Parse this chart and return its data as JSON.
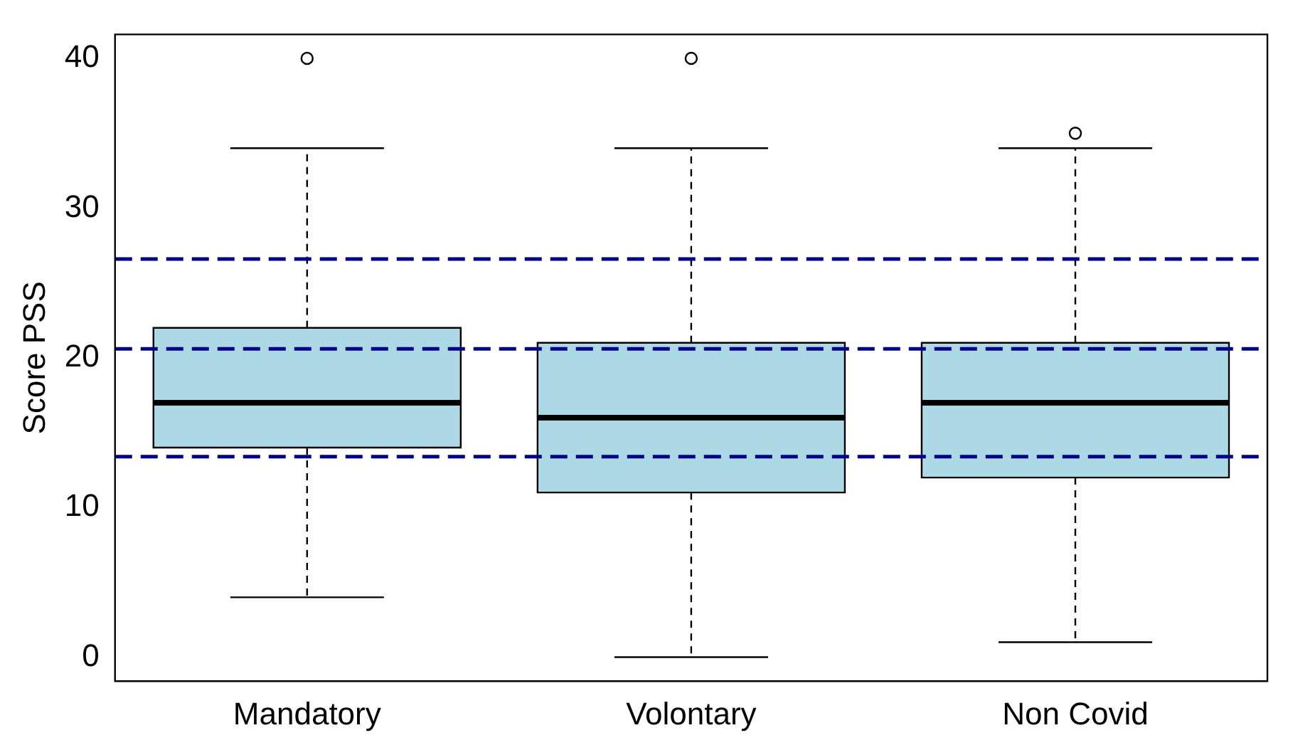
{
  "chart_data": {
    "type": "box",
    "ylabel": "Score PSS",
    "categories": [
      "Mandatory",
      "Volontary",
      "Non Covid"
    ],
    "color": "#add8e6",
    "boxes": [
      {
        "low": 4,
        "q1": 14,
        "median": 17,
        "q3": 22,
        "high": 34,
        "outliers": [
          40
        ]
      },
      {
        "low": 0,
        "q1": 11,
        "median": 16,
        "q3": 21,
        "high": 34,
        "outliers": [
          40
        ]
      },
      {
        "low": 1,
        "q1": 12,
        "median": 17,
        "q3": 21,
        "high": 34,
        "outliers": [
          35
        ]
      }
    ],
    "ylim": [
      -1.6,
      41.6
    ],
    "yticks": [
      0,
      10,
      20,
      30,
      40
    ],
    "ref_lines": [
      {
        "axis": "y",
        "value": 26.6,
        "color": "#00008b",
        "line_style": "dashed"
      },
      {
        "axis": "y",
        "value": 20.6,
        "color": "#00008b",
        "line_style": "dashed"
      },
      {
        "axis": "y",
        "value": 13.4,
        "color": "#00008b",
        "line_style": "dashed"
      }
    ]
  }
}
